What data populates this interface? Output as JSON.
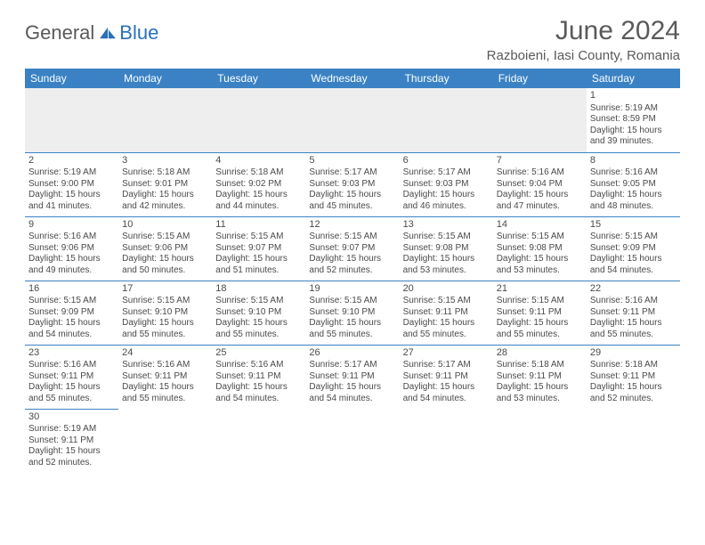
{
  "brand": {
    "text1": "General",
    "text2": "Blue"
  },
  "title": "June 2024",
  "location": "Razboieni, Iasi County, Romania",
  "colors": {
    "header_bg": "#3b82c4",
    "header_text": "#ffffff",
    "border": "#3b82c4",
    "body_text": "#4a4a4a",
    "title_text": "#5a5a5a",
    "empty_bg": "#eeeeee",
    "brand_gray": "#5a5a5a",
    "brand_blue": "#2a71b8"
  },
  "day_headers": [
    "Sunday",
    "Monday",
    "Tuesday",
    "Wednesday",
    "Thursday",
    "Friday",
    "Saturday"
  ],
  "weeks": [
    [
      null,
      null,
      null,
      null,
      null,
      null,
      {
        "n": "1",
        "sr": "5:19 AM",
        "ss": "8:59 PM",
        "dl": "15 hours and 39 minutes."
      }
    ],
    [
      {
        "n": "2",
        "sr": "5:19 AM",
        "ss": "9:00 PM",
        "dl": "15 hours and 41 minutes."
      },
      {
        "n": "3",
        "sr": "5:18 AM",
        "ss": "9:01 PM",
        "dl": "15 hours and 42 minutes."
      },
      {
        "n": "4",
        "sr": "5:18 AM",
        "ss": "9:02 PM",
        "dl": "15 hours and 44 minutes."
      },
      {
        "n": "5",
        "sr": "5:17 AM",
        "ss": "9:03 PM",
        "dl": "15 hours and 45 minutes."
      },
      {
        "n": "6",
        "sr": "5:17 AM",
        "ss": "9:03 PM",
        "dl": "15 hours and 46 minutes."
      },
      {
        "n": "7",
        "sr": "5:16 AM",
        "ss": "9:04 PM",
        "dl": "15 hours and 47 minutes."
      },
      {
        "n": "8",
        "sr": "5:16 AM",
        "ss": "9:05 PM",
        "dl": "15 hours and 48 minutes."
      }
    ],
    [
      {
        "n": "9",
        "sr": "5:16 AM",
        "ss": "9:06 PM",
        "dl": "15 hours and 49 minutes."
      },
      {
        "n": "10",
        "sr": "5:15 AM",
        "ss": "9:06 PM",
        "dl": "15 hours and 50 minutes."
      },
      {
        "n": "11",
        "sr": "5:15 AM",
        "ss": "9:07 PM",
        "dl": "15 hours and 51 minutes."
      },
      {
        "n": "12",
        "sr": "5:15 AM",
        "ss": "9:07 PM",
        "dl": "15 hours and 52 minutes."
      },
      {
        "n": "13",
        "sr": "5:15 AM",
        "ss": "9:08 PM",
        "dl": "15 hours and 53 minutes."
      },
      {
        "n": "14",
        "sr": "5:15 AM",
        "ss": "9:08 PM",
        "dl": "15 hours and 53 minutes."
      },
      {
        "n": "15",
        "sr": "5:15 AM",
        "ss": "9:09 PM",
        "dl": "15 hours and 54 minutes."
      }
    ],
    [
      {
        "n": "16",
        "sr": "5:15 AM",
        "ss": "9:09 PM",
        "dl": "15 hours and 54 minutes."
      },
      {
        "n": "17",
        "sr": "5:15 AM",
        "ss": "9:10 PM",
        "dl": "15 hours and 55 minutes."
      },
      {
        "n": "18",
        "sr": "5:15 AM",
        "ss": "9:10 PM",
        "dl": "15 hours and 55 minutes."
      },
      {
        "n": "19",
        "sr": "5:15 AM",
        "ss": "9:10 PM",
        "dl": "15 hours and 55 minutes."
      },
      {
        "n": "20",
        "sr": "5:15 AM",
        "ss": "9:11 PM",
        "dl": "15 hours and 55 minutes."
      },
      {
        "n": "21",
        "sr": "5:15 AM",
        "ss": "9:11 PM",
        "dl": "15 hours and 55 minutes."
      },
      {
        "n": "22",
        "sr": "5:16 AM",
        "ss": "9:11 PM",
        "dl": "15 hours and 55 minutes."
      }
    ],
    [
      {
        "n": "23",
        "sr": "5:16 AM",
        "ss": "9:11 PM",
        "dl": "15 hours and 55 minutes."
      },
      {
        "n": "24",
        "sr": "5:16 AM",
        "ss": "9:11 PM",
        "dl": "15 hours and 55 minutes."
      },
      {
        "n": "25",
        "sr": "5:16 AM",
        "ss": "9:11 PM",
        "dl": "15 hours and 54 minutes."
      },
      {
        "n": "26",
        "sr": "5:17 AM",
        "ss": "9:11 PM",
        "dl": "15 hours and 54 minutes."
      },
      {
        "n": "27",
        "sr": "5:17 AM",
        "ss": "9:11 PM",
        "dl": "15 hours and 54 minutes."
      },
      {
        "n": "28",
        "sr": "5:18 AM",
        "ss": "9:11 PM",
        "dl": "15 hours and 53 minutes."
      },
      {
        "n": "29",
        "sr": "5:18 AM",
        "ss": "9:11 PM",
        "dl": "15 hours and 52 minutes."
      }
    ],
    [
      {
        "n": "30",
        "sr": "5:19 AM",
        "ss": "9:11 PM",
        "dl": "15 hours and 52 minutes."
      },
      null,
      null,
      null,
      null,
      null,
      null
    ]
  ],
  "labels": {
    "sunrise": "Sunrise: ",
    "sunset": "Sunset: ",
    "daylight": "Daylight: "
  }
}
